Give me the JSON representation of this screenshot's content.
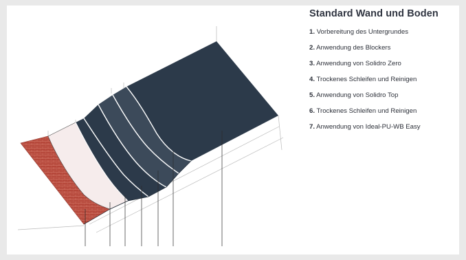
{
  "legend": {
    "title": "Standard Wand und Boden",
    "items": [
      {
        "num": "1.",
        "text": "Vorbereitung des Untergrundes"
      },
      {
        "num": "2.",
        "text": "Anwendung des Blockers"
      },
      {
        "num": "3.",
        "text": "Anwendung von Solidro Zero"
      },
      {
        "num": "4.",
        "text": "Trockenes Schleifen und Reinigen"
      },
      {
        "num": "5.",
        "text": "Anwendung von Solidro Top"
      },
      {
        "num": "6.",
        "text": "Trockenes Schleifen und Reinigen"
      },
      {
        "num": "7.",
        "text": "Anwendung von Ideal-PU-WB Easy"
      }
    ]
  },
  "layer_numbers": [
    "1",
    "2",
    "3",
    "4",
    "5",
    "6",
    "7"
  ],
  "colors": {
    "dark_layer": "#2c3a4a",
    "mid_layer": "#3c4a5a",
    "brick": "#b5473a",
    "primer": "#f6ecec",
    "outline": "#1f2a36",
    "guide": "#b9b9b9"
  }
}
